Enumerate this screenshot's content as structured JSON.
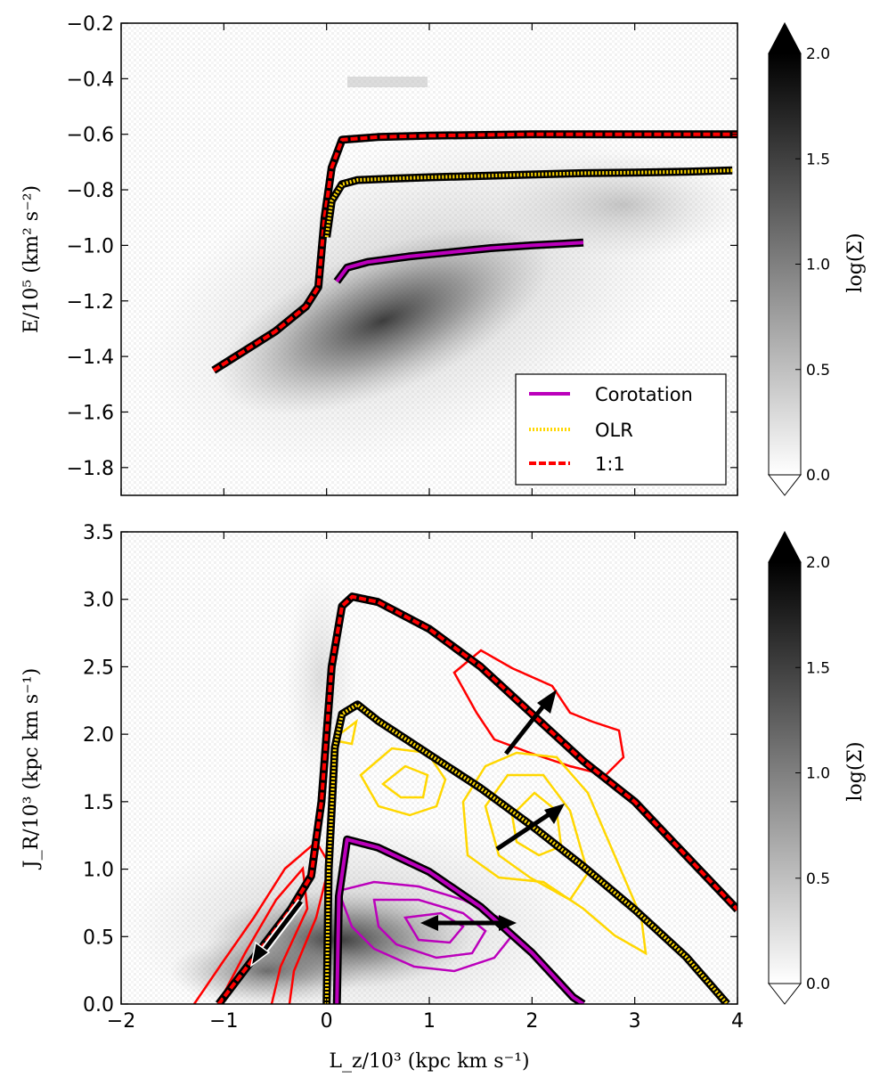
{
  "chart_data": [
    {
      "type": "scatter",
      "panel": "top",
      "ylabel": "E/10⁵ (km² s⁻²)",
      "xlabel": "",
      "xlim": [
        -2,
        4
      ],
      "ylim": [
        -1.9,
        -0.2
      ],
      "xticks": [
        -2,
        -1,
        0,
        1,
        2,
        3,
        4
      ],
      "yticks": [
        -0.2,
        -0.4,
        -0.6,
        -0.8,
        -1.0,
        -1.2,
        -1.4,
        -1.6,
        -1.8
      ],
      "ytick_labels": [
        "−0.2",
        "−0.4",
        "−0.6",
        "−0.8",
        "−1.0",
        "−1.2",
        "−1.4",
        "−1.6",
        "−1.8"
      ],
      "legend": {
        "position": "lower-right",
        "entries": [
          {
            "label": "Corotation",
            "color": "#bb00bb",
            "style": "solid"
          },
          {
            "label": "OLR",
            "color": "#ffd700",
            "style": "dotted"
          },
          {
            "label": "1:1",
            "color": "#ff0000",
            "style": "dashed"
          }
        ]
      },
      "series": [
        {
          "name": "1:1",
          "color": "#ff0000",
          "style": "dashed",
          "x": [
            -1.1,
            -0.8,
            -0.5,
            -0.2,
            -0.08,
            -0.02,
            0.05,
            0.15,
            0.5,
            1.0,
            2.0,
            3.0,
            4.0
          ],
          "y": [
            -1.45,
            -1.38,
            -1.31,
            -1.22,
            -1.15,
            -0.9,
            -0.72,
            -0.62,
            -0.61,
            -0.605,
            -0.6,
            -0.6,
            -0.6
          ]
        },
        {
          "name": "OLR",
          "color": "#ffd700",
          "style": "dotted",
          "x": [
            0.0,
            0.05,
            0.15,
            0.3,
            0.6,
            1.0,
            1.5,
            2.0,
            2.5,
            3.0,
            3.5,
            3.95
          ],
          "y": [
            -0.97,
            -0.84,
            -0.78,
            -0.765,
            -0.76,
            -0.755,
            -0.75,
            -0.745,
            -0.74,
            -0.738,
            -0.735,
            -0.73
          ]
        },
        {
          "name": "Corotation",
          "color": "#bb00bb",
          "style": "solid",
          "x": [
            0.1,
            0.2,
            0.4,
            0.8,
            1.2,
            1.6,
            2.0,
            2.5
          ],
          "y": [
            -1.13,
            -1.08,
            -1.06,
            -1.04,
            -1.025,
            -1.01,
            -1.0,
            -0.99
          ]
        }
      ]
    },
    {
      "type": "scatter",
      "panel": "bottom",
      "ylabel": "J_R/10³ (kpc km s⁻¹)",
      "xlabel": "L_z/10³ (kpc km s⁻¹)",
      "xlim": [
        -2,
        4
      ],
      "ylim": [
        0,
        3.5
      ],
      "xticks": [
        -2,
        -1,
        0,
        1,
        2,
        3,
        4
      ],
      "xtick_labels": [
        "−2",
        "−1",
        "0",
        "1",
        "2",
        "3",
        "4"
      ],
      "yticks": [
        0.0,
        0.5,
        1.0,
        1.5,
        2.0,
        2.5,
        3.0,
        3.5
      ],
      "ytick_labels": [
        "0.0",
        "0.5",
        "1.0",
        "1.5",
        "2.0",
        "2.5",
        "3.0",
        "3.5"
      ],
      "series": [
        {
          "name": "1:1",
          "color": "#ff0000",
          "style": "dashed",
          "x": [
            -1.05,
            -0.7,
            -0.35,
            -0.15,
            -0.05,
            0.05,
            0.15,
            0.25,
            0.5,
            1.0,
            1.5,
            2.0,
            2.5,
            3.0,
            3.5,
            4.0
          ],
          "y": [
            0.0,
            0.35,
            0.7,
            0.95,
            1.5,
            2.5,
            2.95,
            3.02,
            2.98,
            2.78,
            2.5,
            2.15,
            1.8,
            1.5,
            1.1,
            0.7
          ]
        },
        {
          "name": "OLR",
          "color": "#ffd700",
          "style": "dotted",
          "x": [
            0.0,
            0.02,
            0.08,
            0.15,
            0.3,
            0.5,
            1.0,
            1.5,
            2.0,
            2.5,
            3.0,
            3.5,
            3.9
          ],
          "y": [
            0.0,
            1.0,
            1.9,
            2.15,
            2.22,
            2.1,
            1.85,
            1.6,
            1.32,
            1.02,
            0.7,
            0.35,
            0.0
          ]
        },
        {
          "name": "Corotation",
          "color": "#bb00bb",
          "style": "solid",
          "x": [
            0.1,
            0.12,
            0.2,
            0.5,
            1.0,
            1.5,
            2.0,
            2.4,
            2.5
          ],
          "y": [
            0.0,
            0.8,
            1.22,
            1.16,
            0.98,
            0.72,
            0.38,
            0.05,
            0.0
          ]
        }
      ]
    }
  ],
  "colorbars": [
    {
      "label": "log(Σ)",
      "ticks": [
        "0.0",
        "0.5",
        "1.0",
        "1.5",
        "2.0"
      ],
      "range": [
        0,
        2
      ]
    },
    {
      "label": "log(Σ)",
      "ticks": [
        "0.0",
        "0.5",
        "1.0",
        "1.5",
        "2.0"
      ],
      "range": [
        0,
        2
      ]
    }
  ]
}
